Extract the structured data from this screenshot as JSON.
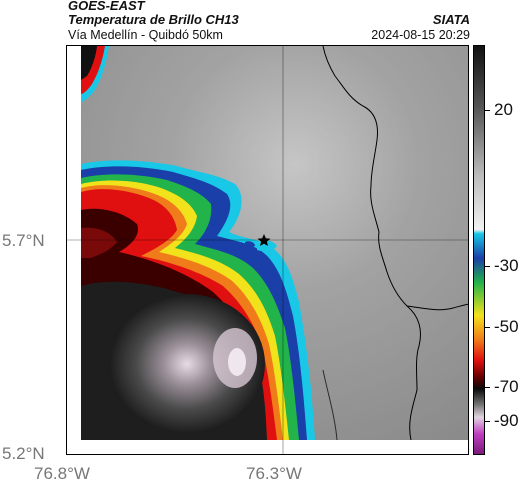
{
  "header": {
    "title_line1": "GOES-EAST",
    "title_line2": "Temperatura de Brillo CH13",
    "subtitle": "Vía Medellín - Quibdó 50km",
    "organization": "SIATA",
    "datetime": "2024-08-15 20:29"
  },
  "axes": {
    "lat_labels": [
      "5.7°N",
      "5.2°N"
    ],
    "lon_labels": [
      "76.8°W",
      "76.3°W"
    ]
  },
  "colorbar": {
    "labels": [
      "20",
      "-30",
      "-50",
      "-70",
      "-90"
    ]
  },
  "map": {
    "marker": "star-icon",
    "colors": {
      "warm_gray": "#9a9a9a",
      "cyan": "#19c8e6",
      "blue": "#1a3fa8",
      "green": "#22b34a",
      "yellow": "#f2e21b",
      "orange": "#f07b1a",
      "red": "#e01010",
      "black": "#0a0a0a",
      "magenta": "#c040c0"
    }
  }
}
